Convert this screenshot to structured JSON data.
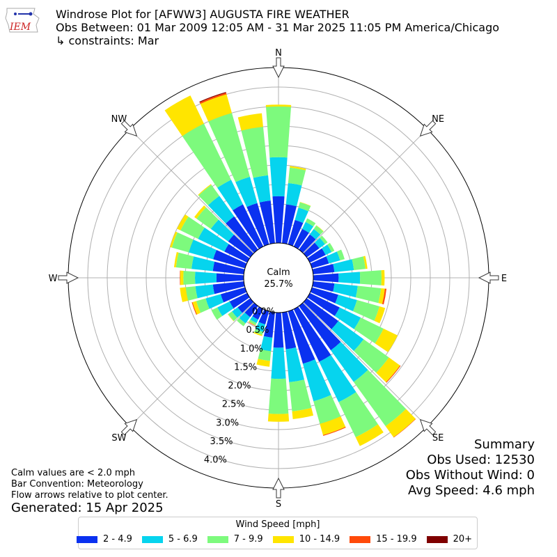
{
  "logo": {
    "text": "IEM",
    "color": "#cc2222"
  },
  "header": {
    "title": "Windrose Plot for [AFWW3] AUGUSTA FIRE WEATHER",
    "obs_between": "Obs Between: 01 Mar 2009 12:05 AM - 31 Mar 2025 11:05 PM America/Chicago",
    "constraints": "↳ constraints: Mar"
  },
  "summary": {
    "title": "Summary",
    "obs_used": "Obs Used: 12530",
    "obs_without_wind": "Obs Without Wind: 0",
    "avg_speed": "Avg Speed: 4.6 mph"
  },
  "notes": {
    "calm": "Calm values are < 2.0 mph",
    "bar_convention": "Bar Convention: Meteorology",
    "flow_arrows": "Flow arrows relative to plot center."
  },
  "generated": "Generated: 15 Apr 2025",
  "chart_data": {
    "type": "windrose",
    "calm_label": "Calm",
    "calm_value_label": "25.7%",
    "calm_percent": 25.7,
    "radial_labels": [
      "0.0%",
      "0.5%",
      "1.0%",
      "1.5%",
      "2.0%",
      "2.5%",
      "3.0%",
      "3.5%",
      "4.0%"
    ],
    "radial_ticks": [
      0,
      0.5,
      1.0,
      1.5,
      2.0,
      2.5,
      3.0,
      3.5,
      4.0
    ],
    "r_max": 4.5,
    "compass_labels": [
      {
        "label": "N",
        "dir": 0
      },
      {
        "label": "NE",
        "dir": 45
      },
      {
        "label": "E",
        "dir": 90
      },
      {
        "label": "SE",
        "dir": 135
      },
      {
        "label": "S",
        "dir": 180
      },
      {
        "label": "SW",
        "dir": 225
      },
      {
        "label": "W",
        "dir": 270
      },
      {
        "label": "NW",
        "dir": 315
      }
    ],
    "legend_title": "Wind Speed [mph]",
    "bins": [
      {
        "label": "2 - 4.9",
        "color": "#0a31f0"
      },
      {
        "label": "5 - 6.9",
        "color": "#06d4ee"
      },
      {
        "label": "7 - 9.9",
        "color": "#7dfa7d"
      },
      {
        "label": "10 - 14.9",
        "color": "#ffe500"
      },
      {
        "label": "15 - 19.9",
        "color": "#ff4a0a"
      },
      {
        "label": "20+",
        "color": "#7f0000"
      }
    ],
    "directions": [
      0,
      10,
      20,
      30,
      40,
      50,
      60,
      70,
      80,
      90,
      100,
      110,
      120,
      130,
      140,
      150,
      160,
      170,
      180,
      190,
      200,
      210,
      220,
      230,
      240,
      250,
      260,
      270,
      280,
      290,
      300,
      310,
      320,
      330,
      340,
      350
    ],
    "cumulative": [
      [
        1.2,
        2.2,
        3.5,
        3.55,
        3.55,
        3.55
      ],
      [
        1.0,
        1.55,
        1.95,
        1.99,
        1.99,
        1.99
      ],
      [
        0.65,
        0.98,
        1.12,
        1.13,
        1.13,
        1.13
      ],
      [
        0.5,
        0.7,
        0.8,
        0.8,
        0.8,
        0.8
      ],
      [
        0.48,
        0.65,
        0.76,
        0.77,
        0.77,
        0.77
      ],
      [
        0.4,
        0.58,
        0.66,
        0.66,
        0.66,
        0.66
      ],
      [
        0.45,
        0.62,
        0.7,
        0.7,
        0.7,
        0.7
      ],
      [
        0.45,
        0.75,
        0.87,
        0.87,
        0.87,
        0.87
      ],
      [
        0.55,
        1.05,
        1.35,
        1.4,
        1.4,
        1.4
      ],
      [
        0.65,
        1.2,
        1.75,
        1.83,
        1.83,
        1.83
      ],
      [
        0.55,
        1.15,
        1.75,
        1.85,
        1.89,
        1.89
      ],
      [
        0.7,
        1.2,
        1.8,
        1.95,
        1.95,
        1.95
      ],
      [
        0.85,
        1.45,
        2.1,
        2.5,
        2.5,
        2.5
      ],
      [
        1.0,
        1.8,
        2.6,
        2.95,
        2.97,
        2.97
      ],
      [
        1.4,
        2.4,
        3.8,
        4.15,
        4.16,
        4.16
      ],
      [
        1.5,
        2.65,
        3.65,
        3.9,
        3.9,
        3.9
      ],
      [
        1.4,
        2.4,
        3.0,
        3.3,
        3.32,
        3.32
      ],
      [
        0.95,
        1.8,
        2.55,
        2.75,
        2.75,
        2.75
      ],
      [
        0.9,
        1.7,
        2.6,
        2.8,
        2.8,
        2.8
      ],
      [
        0.65,
        1.0,
        1.25,
        1.4,
        1.4,
        1.4
      ],
      [
        0.35,
        0.55,
        0.63,
        0.66,
        0.66,
        0.66
      ],
      [
        0.3,
        0.4,
        0.46,
        0.47,
        0.48,
        0.48
      ],
      [
        0.35,
        0.55,
        0.64,
        0.64,
        0.64,
        0.64
      ],
      [
        0.4,
        0.58,
        0.7,
        0.71,
        0.71,
        0.71
      ],
      [
        0.5,
        0.85,
        1.02,
        1.02,
        1.02,
        1.02
      ],
      [
        0.65,
        1.05,
        1.3,
        1.4,
        1.42,
        1.42
      ],
      [
        0.8,
        1.25,
        1.5,
        1.65,
        1.65,
        1.65
      ],
      [
        0.7,
        1.25,
        1.55,
        1.63,
        1.64,
        1.64
      ],
      [
        0.8,
        1.35,
        1.75,
        1.8,
        1.8,
        1.8
      ],
      [
        0.85,
        1.5,
        1.95,
        2.0,
        2.0,
        2.0
      ],
      [
        0.65,
        1.4,
        1.9,
        2.0,
        2.0,
        2.0
      ],
      [
        0.7,
        1.25,
        1.7,
        1.77,
        1.77,
        1.77
      ],
      [
        1.05,
        1.7,
        2.05,
        2.07,
        2.07,
        2.07
      ],
      [
        1.2,
        1.9,
        3.5,
        4.3,
        4.3,
        4.3
      ],
      [
        1.1,
        1.8,
        3.5,
        4.0,
        4.04,
        4.06
      ],
      [
        1.1,
        1.75,
        3.0,
        3.35,
        3.35,
        3.35
      ]
    ]
  }
}
